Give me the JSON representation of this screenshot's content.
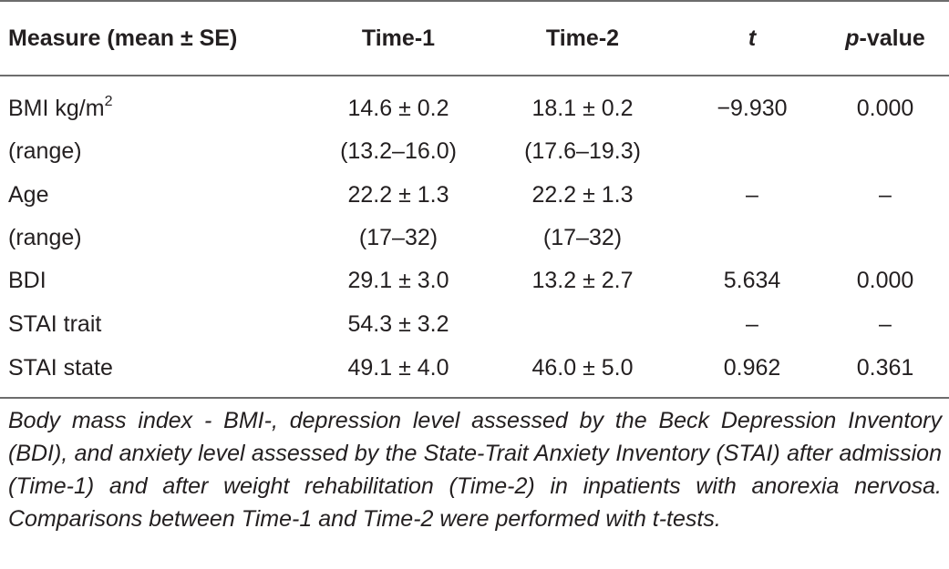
{
  "table": {
    "headers": [
      {
        "text": "Measure (mean ± SE)",
        "italic_part": "",
        "suffix": ""
      },
      {
        "text": "Time-1",
        "italic_part": "",
        "suffix": ""
      },
      {
        "text": "Time-2",
        "italic_part": "",
        "suffix": ""
      },
      {
        "text": "",
        "italic_part": "t",
        "suffix": ""
      },
      {
        "text": "",
        "italic_part": "p",
        "suffix": "-value"
      }
    ],
    "rows": [
      {
        "measure": "BMI kg/m",
        "measure_sup": "2",
        "time1": "14.6 ± 0.2",
        "time2": "18.1 ± 0.2",
        "t": "−9.930",
        "p": "0.000"
      },
      {
        "measure": "(range)",
        "measure_sup": "",
        "time1": "(13.2–16.0)",
        "time2": "(17.6–19.3)",
        "t": "",
        "p": ""
      },
      {
        "measure": "Age",
        "measure_sup": "",
        "time1": "22.2 ± 1.3",
        "time2": "22.2 ± 1.3",
        "t": "–",
        "p": "–"
      },
      {
        "measure": "(range)",
        "measure_sup": "",
        "time1": "(17–32)",
        "time2": "(17–32)",
        "t": "",
        "p": ""
      },
      {
        "measure": "BDI",
        "measure_sup": "",
        "time1": "29.1 ± 3.0",
        "time2": "13.2 ± 2.7",
        "t": "5.634",
        "p": "0.000"
      },
      {
        "measure": "STAI trait",
        "measure_sup": "",
        "time1": "54.3 ± 3.2",
        "time2": "",
        "t": "–",
        "p": "–"
      },
      {
        "measure": "STAI state",
        "measure_sup": "",
        "time1": "49.1 ± 4.0",
        "time2": "46.0 ± 5.0",
        "t": "0.962",
        "p": "0.361"
      }
    ]
  },
  "caption": "Body mass index - BMI-, depression level assessed by the Beck Depression Inventory (BDI), and anxiety level assessed by the State-Trait Anxiety Inventory (STAI) after admission (Time-1) and after weight rehabilitation (Time-2) in inpatients with anorexia nervosa. Comparisons between Time-1 and Time-2 were performed with t-tests."
}
